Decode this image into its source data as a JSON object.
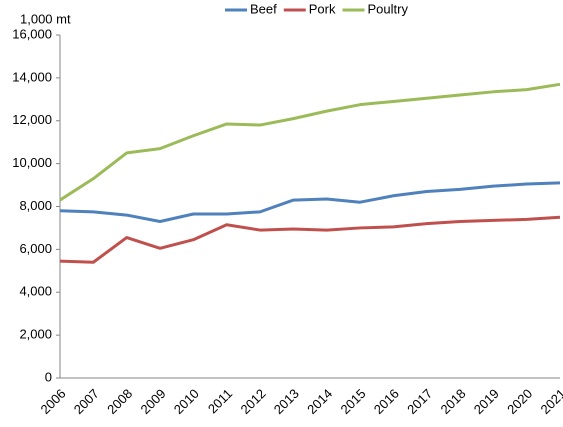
{
  "chart_data": {
    "type": "line",
    "y_label": "1,000 mt",
    "categories": [
      "2006",
      "2007",
      "2008",
      "2009",
      "2010",
      "2011",
      "2012",
      "2013",
      "2014",
      "2015",
      "2016",
      "2017",
      "2018",
      "2019",
      "2020",
      "2021"
    ],
    "series": [
      {
        "name": "Beef",
        "color": "#4f81bd",
        "values": [
          7800,
          7750,
          7600,
          7300,
          7650,
          7650,
          7750,
          8300,
          8350,
          8200,
          8500,
          8700,
          8800,
          8950,
          9050,
          9100
        ]
      },
      {
        "name": "Pork",
        "color": "#c0504d",
        "values": [
          5450,
          5400,
          6550,
          6050,
          6450,
          7150,
          6900,
          6950,
          6900,
          7000,
          7050,
          7200,
          7300,
          7350,
          7400,
          7500
        ]
      },
      {
        "name": "Poultry",
        "color": "#9bbb59",
        "values": [
          8300,
          9300,
          10500,
          10700,
          11300,
          11850,
          11800,
          12100,
          12450,
          12750,
          12900,
          13050,
          13200,
          13350,
          13450,
          13700
        ]
      }
    ],
    "ylim": [
      0,
      16000
    ],
    "yticks": [
      0,
      {
        "value": 2000,
        "label": "2,000"
      },
      {
        "value": 4000,
        "label": "4,000"
      },
      {
        "value": 6000,
        "label": "6,000"
      },
      {
        "value": 8000,
        "label": "8,000"
      },
      {
        "value": 10000,
        "label": "10,000"
      },
      {
        "value": 12000,
        "label": "12,000"
      },
      {
        "value": 14000,
        "label": "14,000"
      },
      {
        "value": 16000,
        "label": "16,000"
      }
    ],
    "grid": false,
    "legend": "top"
  }
}
